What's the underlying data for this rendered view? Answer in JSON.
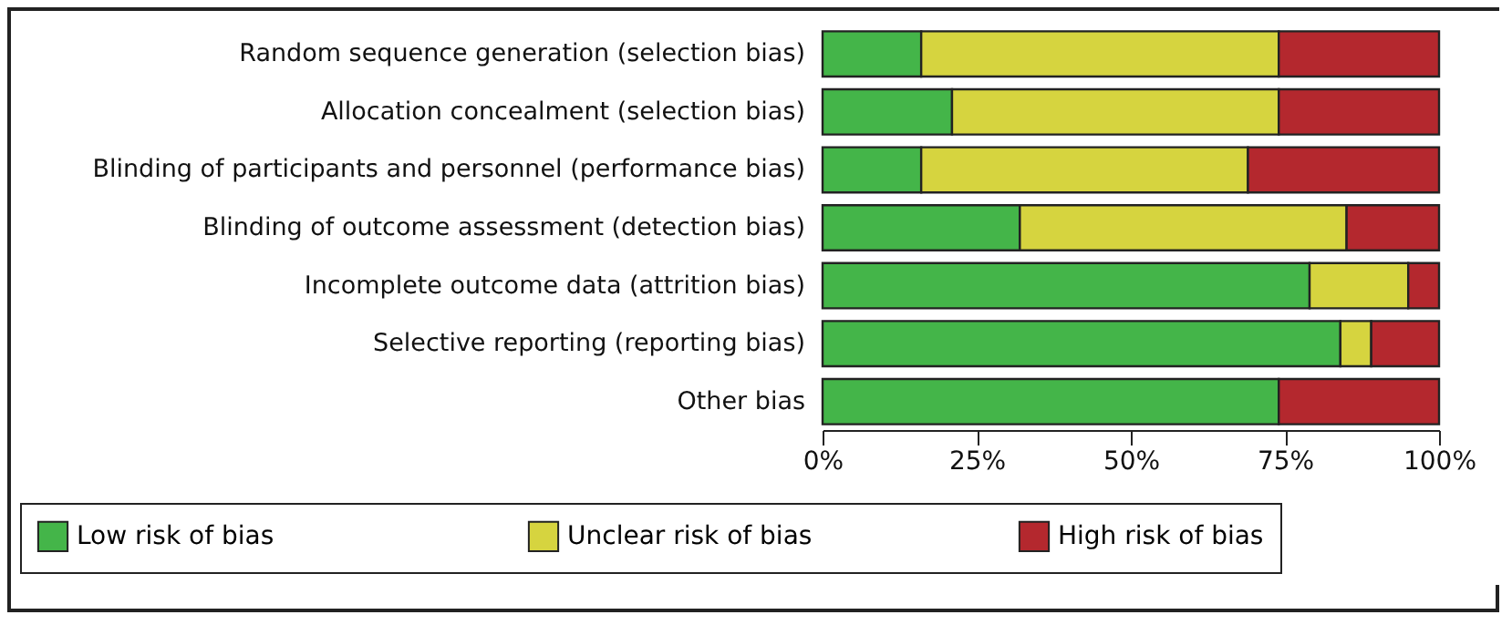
{
  "chart_data": {
    "type": "bar",
    "orientation": "horizontal",
    "stacked": true,
    "categories": [
      "Random sequence generation (selection bias)",
      "Allocation concealment (selection bias)",
      "Blinding of participants and personnel (performance bias)",
      "Blinding of outcome assessment (detection bias)",
      "Incomplete outcome data (attrition bias)",
      "Selective reporting (reporting bias)",
      "Other bias"
    ],
    "series": [
      {
        "name": "Low risk of bias",
        "color": "#44b549",
        "values": [
          16,
          21,
          16,
          32,
          79,
          84,
          74
        ]
      },
      {
        "name": "Unclear risk of bias",
        "color": "#d6d43f",
        "values": [
          58,
          53,
          53,
          53,
          16,
          5,
          0
        ]
      },
      {
        "name": "High risk of bias",
        "color": "#b4282e",
        "values": [
          26,
          26,
          31,
          15,
          5,
          11,
          26
        ]
      }
    ],
    "xlim": [
      0,
      100
    ],
    "xticks": [
      {
        "value": 0,
        "label": "0%"
      },
      {
        "value": 25,
        "label": "25%"
      },
      {
        "value": 50,
        "label": "50%"
      },
      {
        "value": 75,
        "label": "75%"
      },
      {
        "value": 100,
        "label": "100%"
      }
    ],
    "grid": false,
    "legend": "bottom"
  }
}
